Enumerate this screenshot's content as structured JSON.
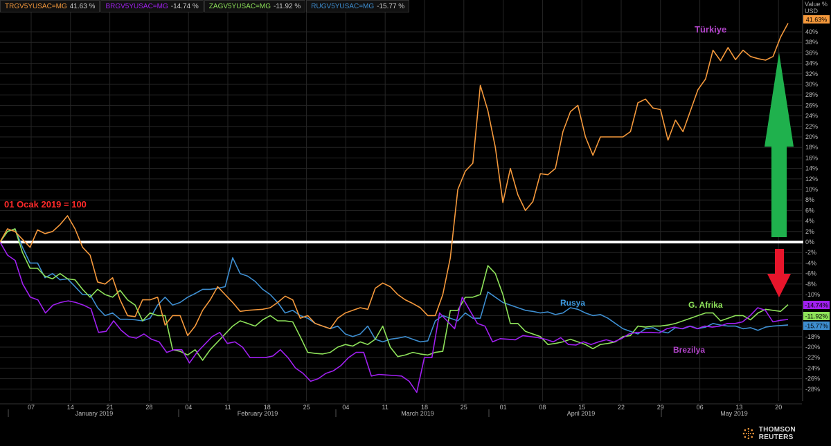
{
  "legend": [
    {
      "code": "TRGV5YUSAC=MG",
      "value": "41.63 %",
      "color": "#f5993c"
    },
    {
      "code": "BRGV5YUSAC=MG",
      "value": "-14.74 %",
      "color": "#a020f0"
    },
    {
      "code": "ZAGV5YUSAC=MG",
      "value": "-11.92 %",
      "color": "#8ee25a"
    },
    {
      "code": "RUGV5YUSAC=MG",
      "value": "-15.77 %",
      "color": "#3e8ed0"
    }
  ],
  "axis_caption": {
    "line1": "Value %",
    "line2": "USD"
  },
  "brand": "THOMSON REUTERS",
  "chart_data": {
    "type": "line",
    "x_axis": {
      "ticks": [
        "07",
        "14",
        "21",
        "28",
        "04",
        "11",
        "18",
        "25",
        "04",
        "11",
        "18",
        "25",
        "01",
        "08",
        "15",
        "22",
        "29",
        "06",
        "13",
        "20"
      ],
      "months": [
        "January 2019",
        "February 2019",
        "March 2019",
        "April 2019",
        "May 2019"
      ]
    },
    "y_axis": {
      "ylim": [
        -29,
        43
      ],
      "tick_labels": [
        "40%",
        "38%",
        "36%",
        "34%",
        "32%",
        "30%",
        "28%",
        "26%",
        "24%",
        "22%",
        "20%",
        "18%",
        "16%",
        "14%",
        "12%",
        "10%",
        "8%",
        "6%",
        "4%",
        "2%",
        "0%",
        "-2%",
        "-4%",
        "-6%",
        "-8%",
        "-10%",
        "-12%",
        "-14%",
        "-16%",
        "-18%",
        "-20%",
        "-22%",
        "-24%",
        "-26%",
        "-28%"
      ]
    },
    "annotations": {
      "baseline_label": "01 Ocak 2019 = 100",
      "turkiye": "Türkiye",
      "rusya": "Rusya",
      "g_afrika": "G. Afrika",
      "brezilya": "Brezilya"
    },
    "last_value_tags": [
      {
        "label": "41.63%",
        "value": 41.63,
        "color": "#f5993c"
      },
      {
        "label": "-11.92%",
        "value": -11.92,
        "color": "#8ee25a"
      },
      {
        "label": "-14.74%",
        "value": -14.74,
        "color": "#a020f0"
      },
      {
        "label": "-15.77%",
        "value": -15.77,
        "color": "#3e8ed0"
      }
    ],
    "series": [
      {
        "name": "TRGV5YUSAC=MG",
        "color": "#f5993c",
        "values": [
          0,
          2.5,
          2,
          0.5,
          -1,
          2.3,
          1.6,
          2,
          3.3,
          5,
          2.5,
          -1,
          -2.5,
          -7.6,
          -8,
          -6.8,
          -11,
          -14,
          -14.2,
          -11,
          -11,
          -10.5,
          -15.8,
          -14,
          -14,
          -17.8,
          -16,
          -13,
          -11,
          -8.5,
          -10,
          -11.5,
          -13.2,
          -13,
          -12.9,
          -12.8,
          -12.5,
          -11.5,
          -10.3,
          -11,
          -14.5,
          -14,
          -15.5,
          -16,
          -16.5,
          -14.5,
          -13.5,
          -13,
          -12.5,
          -12.8,
          -8.8,
          -7.8,
          -8.5,
          -10,
          -11,
          -11.7,
          -12.5,
          -14,
          -14,
          -10,
          -3,
          10,
          13.5,
          15,
          29.8,
          25,
          18,
          7.5,
          14,
          9,
          6,
          7.7,
          13,
          12.8,
          14,
          21,
          24.8,
          26,
          20,
          16.5,
          20,
          20,
          20,
          20,
          21,
          26.5,
          27.2,
          25.5,
          25.2,
          19.4,
          23.2,
          21,
          25,
          29,
          31,
          36.5,
          34.5,
          37,
          34.7,
          36.5,
          35.3,
          34.9,
          34.6,
          35.3,
          39,
          41.63
        ]
      },
      {
        "name": "BRGV5YUSAC=MG",
        "color": "#a020f0",
        "values": [
          0,
          -2.5,
          -3.5,
          -8,
          -10.5,
          -11,
          -13.5,
          -12,
          -11.5,
          -11.2,
          -11.5,
          -12,
          -12.7,
          -17.2,
          -17,
          -15,
          -16.8,
          -18,
          -18.3,
          -17.5,
          -18.5,
          -19,
          -21,
          -20.5,
          -20.5,
          -23,
          -21,
          -19.5,
          -18,
          -17.2,
          -19.3,
          -19,
          -20,
          -22,
          -22,
          -22,
          -21.7,
          -20.5,
          -22,
          -24,
          -25,
          -26.5,
          -26,
          -25,
          -24.5,
          -23.5,
          -22,
          -21,
          -21,
          -25.5,
          -25.2,
          -25.3,
          -25.4,
          -25.5,
          -26.5,
          -28.6,
          -22,
          -22,
          -13.5,
          -15,
          -16.5,
          -10.5,
          -13,
          -15.5,
          -16,
          -19,
          -18.4,
          -18.5,
          -18.6,
          -17.8,
          -18,
          -18.2,
          -18.5,
          -19,
          -18.2,
          -19.5,
          -19.6,
          -19,
          -19.5,
          -19,
          -18.6,
          -19,
          -18.4,
          -17.5,
          -17.2,
          -17.2,
          -17.2,
          -17.3,
          -16.5,
          -16.2,
          -16.5,
          -16,
          -16.5,
          -16,
          -16.2,
          -16,
          -15.5,
          -15.5,
          -15.2,
          -14,
          -12.5,
          -13,
          -15.2,
          -14.9,
          -14.74
        ]
      },
      {
        "name": "ZAGV5YUSAC=MG",
        "color": "#8ee25a",
        "values": [
          0,
          2,
          2.5,
          -2,
          -5,
          -5,
          -6.5,
          -7,
          -6,
          -7,
          -7.2,
          -9,
          -10.5,
          -9,
          -10,
          -10.5,
          -9.2,
          -11,
          -12,
          -15,
          -13.5,
          -14,
          -14,
          -20.5,
          -20.8,
          -21.5,
          -20.5,
          -22.5,
          -20.5,
          -19,
          -17.5,
          -16,
          -15,
          -15.5,
          -16,
          -14.8,
          -14,
          -15,
          -15,
          -15.2,
          -18,
          -21,
          -21.2,
          -21.3,
          -21,
          -20,
          -19.5,
          -19.8,
          -19,
          -19.5,
          -18.5,
          -16,
          -20,
          -21.8,
          -21.5,
          -21,
          -21.3,
          -21.5,
          -21,
          -20.8,
          -13,
          -13,
          -10.5,
          -10.5,
          -10,
          -4.5,
          -6,
          -10,
          -15.5,
          -15.5,
          -17,
          -17.5,
          -18,
          -19.5,
          -19.3,
          -19,
          -18.5,
          -19,
          -19.5,
          -20.3,
          -19.5,
          -19.3,
          -19,
          -18,
          -17.8,
          -16,
          -16.2,
          -16,
          -16,
          -15.8,
          -15.5,
          -15,
          -14.5,
          -14,
          -13.5,
          -13.5,
          -15,
          -14.5,
          -14,
          -14,
          -14.8,
          -13.5,
          -12.8,
          -13,
          -13.2,
          -11.92
        ]
      },
      {
        "name": "RUGV5YUSAC=MG",
        "color": "#3e8ed0",
        "values": [
          0,
          2,
          2.5,
          -1,
          -4,
          -4,
          -6.8,
          -6,
          -7.2,
          -7,
          -8.5,
          -10,
          -10,
          -12.5,
          -14,
          -13.5,
          -14.7,
          -14.7,
          -14.8,
          -15,
          -14.5,
          -12,
          -10.5,
          -12,
          -11.5,
          -10.5,
          -9.8,
          -9,
          -9,
          -8.8,
          -8.5,
          -3,
          -6,
          -6.5,
          -7.5,
          -9,
          -10,
          -11.5,
          -13.5,
          -13,
          -14,
          -14.5,
          -15.5,
          -16,
          -16.5,
          -16,
          -17.5,
          -18,
          -17.5,
          -16,
          -18.5,
          -19,
          -18.5,
          -18.3,
          -18,
          -18.5,
          -19,
          -18.8,
          -15,
          -14,
          -14.5,
          -15,
          -13.5,
          -14.5,
          -14.5,
          -9.5,
          -10.5,
          -11.5,
          -12,
          -12.5,
          -13,
          -13.2,
          -13.5,
          -13.3,
          -13.8,
          -13.5,
          -12.5,
          -12.8,
          -13.5,
          -14,
          -13.8,
          -14.5,
          -15.5,
          -16.5,
          -17,
          -17.5,
          -16.5,
          -16.3,
          -17,
          -17.3,
          -16.3,
          -16.5,
          -16,
          -16.5,
          -16.2,
          -15.5,
          -15.8,
          -16,
          -16,
          -16.5,
          -16.3,
          -16.8,
          -16.2,
          -16,
          -15.9,
          -15.77
        ]
      }
    ]
  }
}
